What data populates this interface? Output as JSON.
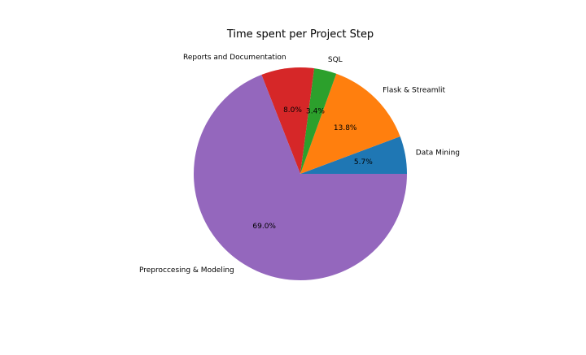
{
  "chart_data": {
    "type": "pie",
    "title": "Time spent per Project Step",
    "start_angle_deg": 0,
    "direction": "counterclockwise",
    "slices": [
      {
        "label": "Data Mining",
        "value": 5.7,
        "pct_label": "5.7%",
        "color": "#1f77b4"
      },
      {
        "label": "Flask & Streamlit",
        "value": 13.8,
        "pct_label": "13.8%",
        "color": "#ff7f0e"
      },
      {
        "label": "SQL",
        "value": 3.4,
        "pct_label": "3.4%",
        "color": "#2ca02c"
      },
      {
        "label": "Reports and Documentation",
        "value": 8.0,
        "pct_label": "8.0%",
        "color": "#d62728"
      },
      {
        "label": "Preproccesing & Modeling",
        "value": 69.0,
        "pct_label": "69.0%",
        "color": "#9467bd"
      }
    ]
  }
}
